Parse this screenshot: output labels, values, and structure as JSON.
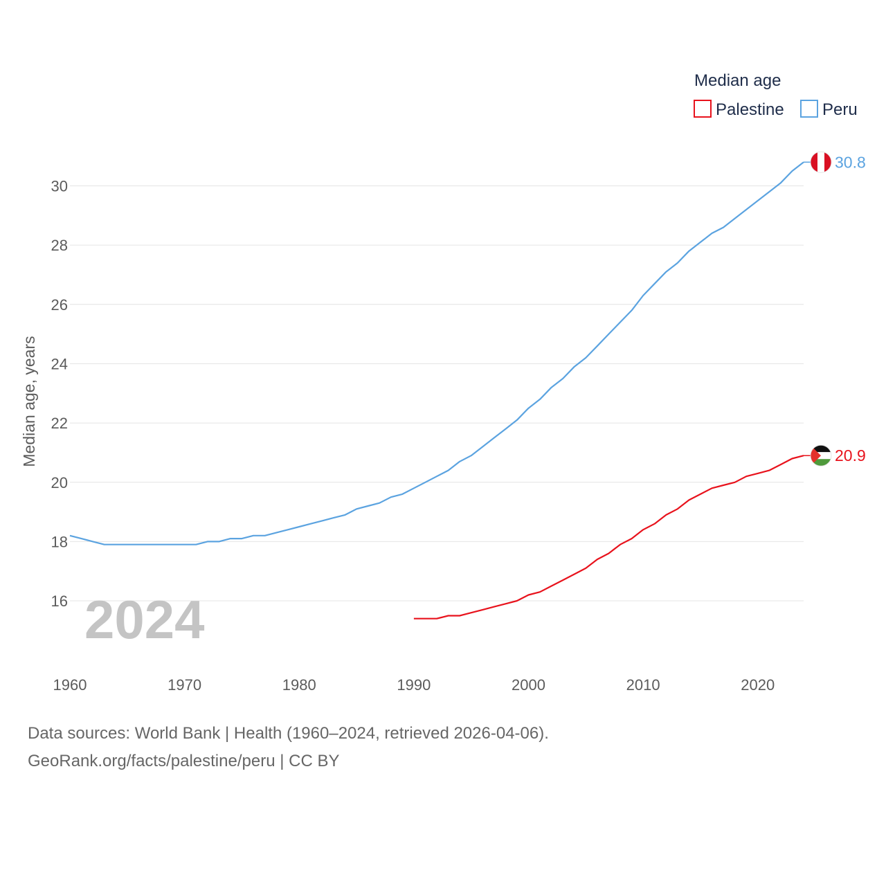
{
  "chart_data": {
    "type": "line",
    "ylabel": "Median age, years",
    "xlabel": "",
    "xlim": [
      1960,
      2024
    ],
    "ylim": [
      14.6,
      31.6
    ],
    "x_ticks": [
      1960,
      1970,
      1980,
      1990,
      2000,
      2010,
      2020
    ],
    "y_ticks": [
      16,
      18,
      20,
      22,
      24,
      26,
      28,
      30
    ],
    "grid": true,
    "year_watermark": "2024",
    "legend": {
      "title": "Median age",
      "placement": "top-right",
      "entries": [
        "Palestine",
        "Peru"
      ]
    },
    "series": [
      {
        "name": "Peru",
        "color": "#5ba3e0",
        "end_label": "30.8",
        "flag": "peru-flag",
        "x": [
          1960,
          1961,
          1962,
          1963,
          1964,
          1965,
          1966,
          1967,
          1968,
          1969,
          1970,
          1971,
          1972,
          1973,
          1974,
          1975,
          1976,
          1977,
          1978,
          1979,
          1980,
          1981,
          1982,
          1983,
          1984,
          1985,
          1986,
          1987,
          1988,
          1989,
          1990,
          1991,
          1992,
          1993,
          1994,
          1995,
          1996,
          1997,
          1998,
          1999,
          2000,
          2001,
          2002,
          2003,
          2004,
          2005,
          2006,
          2007,
          2008,
          2009,
          2010,
          2011,
          2012,
          2013,
          2014,
          2015,
          2016,
          2017,
          2018,
          2019,
          2020,
          2021,
          2022,
          2023,
          2024
        ],
        "values": [
          18.2,
          18.1,
          18.0,
          17.9,
          17.9,
          17.9,
          17.9,
          17.9,
          17.9,
          17.9,
          17.9,
          17.9,
          18.0,
          18.0,
          18.1,
          18.1,
          18.2,
          18.2,
          18.3,
          18.4,
          18.5,
          18.6,
          18.7,
          18.8,
          18.9,
          19.1,
          19.2,
          19.3,
          19.5,
          19.6,
          19.8,
          20.0,
          20.2,
          20.4,
          20.7,
          20.9,
          21.2,
          21.5,
          21.8,
          22.1,
          22.5,
          22.8,
          23.2,
          23.5,
          23.9,
          24.2,
          24.6,
          25.0,
          25.4,
          25.8,
          26.3,
          26.7,
          27.1,
          27.4,
          27.8,
          28.1,
          28.4,
          28.6,
          28.9,
          29.2,
          29.5,
          29.8,
          30.1,
          30.5,
          30.8
        ]
      },
      {
        "name": "Palestine",
        "color": "#e8121c",
        "end_label": "20.9",
        "flag": "palestine-flag",
        "x": [
          1990,
          1991,
          1992,
          1993,
          1994,
          1995,
          1996,
          1997,
          1998,
          1999,
          2000,
          2001,
          2002,
          2003,
          2004,
          2005,
          2006,
          2007,
          2008,
          2009,
          2010,
          2011,
          2012,
          2013,
          2014,
          2015,
          2016,
          2017,
          2018,
          2019,
          2020,
          2021,
          2022,
          2023,
          2024
        ],
        "values": [
          15.4,
          15.4,
          15.4,
          15.5,
          15.5,
          15.6,
          15.7,
          15.8,
          15.9,
          16.0,
          16.2,
          16.3,
          16.5,
          16.7,
          16.9,
          17.1,
          17.4,
          17.6,
          17.9,
          18.1,
          18.4,
          18.6,
          18.9,
          19.1,
          19.4,
          19.6,
          19.8,
          19.9,
          20.0,
          20.2,
          20.3,
          20.4,
          20.6,
          20.8,
          20.9
        ]
      }
    ]
  },
  "source": {
    "line1": "Data sources: World Bank | Health (1960–2024, retrieved 2026-04-06).",
    "line2": "GeoRank.org/facts/palestine/peru | CC BY"
  }
}
